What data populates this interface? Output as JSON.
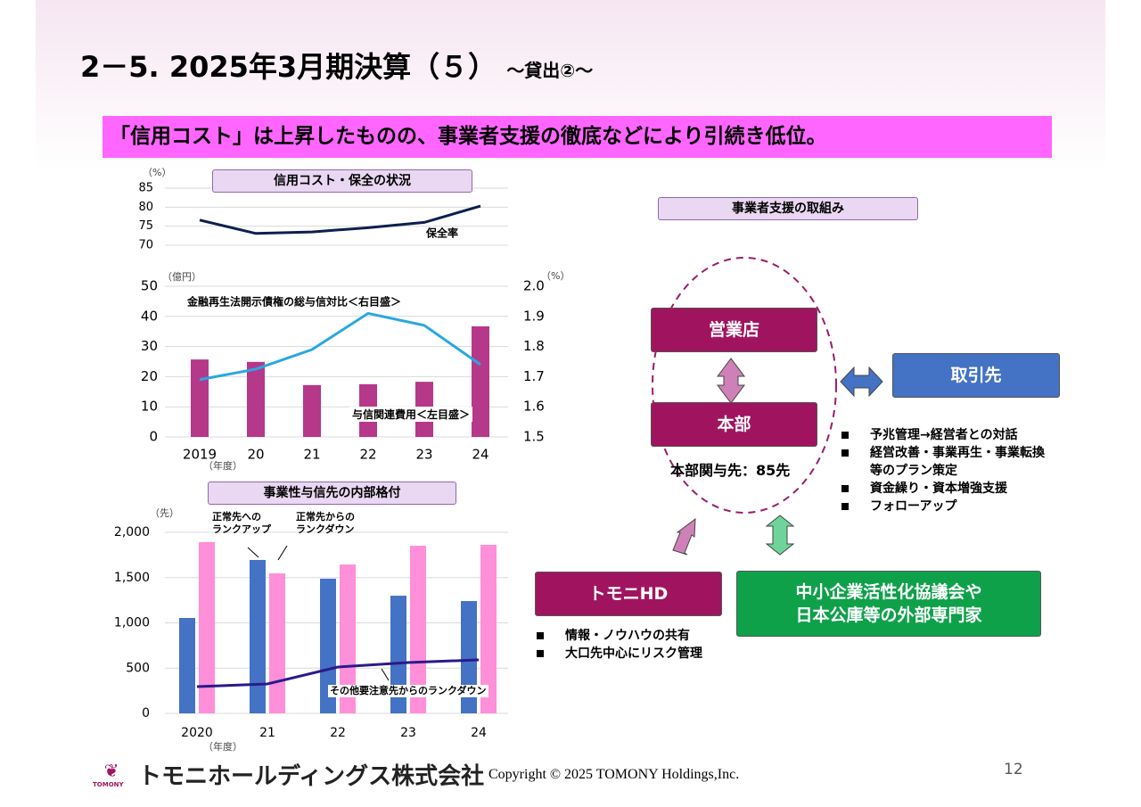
{
  "header": {
    "title": "2－5. 2025年3月期決算（５）",
    "subtitle": "～貸出②～"
  },
  "banner": "「信用コスト」は上昇したものの、事業者支援の徹底などにより引続き低位。",
  "chart_data": [
    {
      "type": "line",
      "title": "信用コスト・保全の状況",
      "y_unit": "（%）",
      "series": [
        {
          "name": "保全率",
          "color": "#0d1f4f",
          "values": [
            76.6,
            73.1,
            73.5,
            74.6,
            76.0,
            80.3
          ]
        }
      ],
      "ylim": [
        70,
        85
      ],
      "yticks": [
        70,
        75,
        80,
        85
      ],
      "grid": true
    },
    {
      "type": "bar_line",
      "y_unit": "（億円）",
      "y2_unit": "（%）",
      "x_unit": "（年度）",
      "categories": [
        "2019",
        "20",
        "21",
        "22",
        "23",
        "24"
      ],
      "series": [
        {
          "name": "与信関連費用＜左目盛＞",
          "type": "bar",
          "color": "#b5388a",
          "values": [
            25.7,
            24.9,
            17.2,
            17.5,
            18.3,
            36.7
          ]
        },
        {
          "name": "金融再生法開示債権の総与信対比＜右目盛＞",
          "type": "line",
          "axis": "y2",
          "color": "#29a8e0",
          "values": [
            1.69,
            1.725,
            1.79,
            1.91,
            1.87,
            1.74
          ]
        }
      ],
      "ylim": [
        0,
        50
      ],
      "yticks": [
        0,
        10,
        20,
        30,
        40,
        50
      ],
      "y2lim": [
        1.5,
        2.0
      ],
      "y2ticks": [
        1.5,
        1.6,
        1.7,
        1.8,
        1.9,
        {
          "value": 2.0,
          "label": "2.0"
        }
      ],
      "grid": true
    },
    {
      "type": "bar_line",
      "title": "事業性与信先の内部格付",
      "y_unit": "（先）",
      "x_unit": "（年度）",
      "categories": [
        "2020",
        "21",
        "22",
        "23",
        "24"
      ],
      "series": [
        {
          "name": "正常先への\nランクアップ",
          "type": "bar",
          "color": "#4472c4",
          "values": [
            1054,
            1695,
            1488,
            1300,
            1241
          ]
        },
        {
          "name": "正常先からの\nランクダウン",
          "type": "bar",
          "color": "#ff8fd8",
          "values": [
            1892,
            1547,
            1645,
            1852,
            1862
          ]
        },
        {
          "name": "その他要注意先からのランクダウン",
          "type": "line",
          "color": "#2a1a8c",
          "values": [
            296,
            325,
            512,
            562,
            591
          ]
        }
      ],
      "ylim": [
        0,
        2000
      ],
      "yticks": [
        0,
        500,
        {
          "value": 1000,
          "label": "1,000"
        },
        {
          "value": 1500,
          "label": "1,500"
        },
        {
          "value": 2000,
          "label": "2,000"
        }
      ],
      "grid": true
    }
  ],
  "diagram": {
    "title": "事業者支援の取組み",
    "branch": "営業店",
    "hq": "本部",
    "hq_note": "本部関与先：85先",
    "client": "取引先",
    "client_items": [
      "予兆管理→経営者との対話",
      "経営改善・事業再生・事業転換\n等のプラン策定",
      "資金繰り・資本増強支援",
      "フォローアップ"
    ],
    "holding": "トモニHD",
    "holding_items": [
      "情報・ノウハウの共有",
      "大口先中心にリスク管理"
    ],
    "experts": "中小企業活性化協議会や\n日本公庫等の外部専門家"
  },
  "footer": {
    "logo": "TOMONY",
    "company": "トモニホールディングス株式会社",
    "copyright": "Copyright © 2025 TOMONY Holdings,Inc.",
    "page": "12"
  }
}
